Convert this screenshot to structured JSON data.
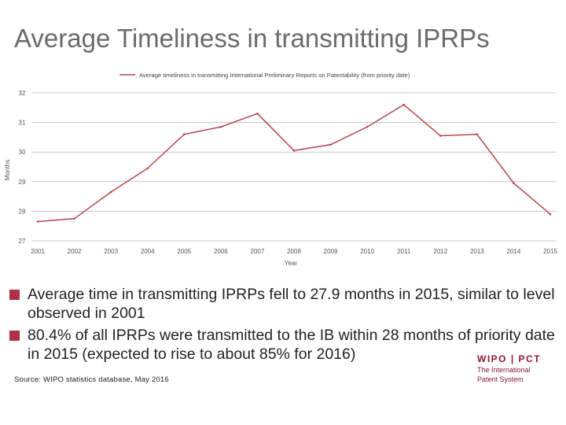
{
  "slide": {
    "title": "Average Timeliness in transmitting IPRPs",
    "bullets": [
      "Average time in transmitting IPRPs fell to 27.9 months in 2015, similar to level observed in 2001",
      "80.4% of all IPRPs were transmitted to the IB within 28 months of priority date in 2015 (expected to rise to about 85% for 2016)"
    ],
    "source": "Source: WIPO statistics database,  May 2016",
    "logo": {
      "left": "WIPO",
      "sep": "|",
      "right": "PCT",
      "line1": "The International",
      "line2": "Patent System"
    }
  },
  "colors": {
    "series": "#b5454f",
    "bullet": "#b0304a",
    "grid": "#c8c8c8",
    "title": "#6b6b6b"
  },
  "chart_data": {
    "type": "line",
    "title": "",
    "xlabel": "Year",
    "ylabel": "Months",
    "ylim": [
      27,
      32
    ],
    "yticks": [
      27,
      28,
      29,
      30,
      31,
      32
    ],
    "grid": true,
    "legend_position": "top",
    "categories": [
      "2001",
      "2002",
      "2003",
      "2004",
      "2005",
      "2006",
      "2007",
      "2008",
      "2009",
      "2010",
      "2011",
      "2012",
      "2013",
      "2014",
      "2015"
    ],
    "series": [
      {
        "name": "Average timeliness in transmitting International Preliminary Reports on Patentability (from priority date)",
        "values": [
          27.65,
          27.75,
          28.65,
          29.45,
          30.6,
          30.85,
          31.3,
          30.05,
          30.25,
          30.85,
          31.6,
          30.55,
          30.6,
          28.95,
          27.9
        ]
      }
    ]
  }
}
